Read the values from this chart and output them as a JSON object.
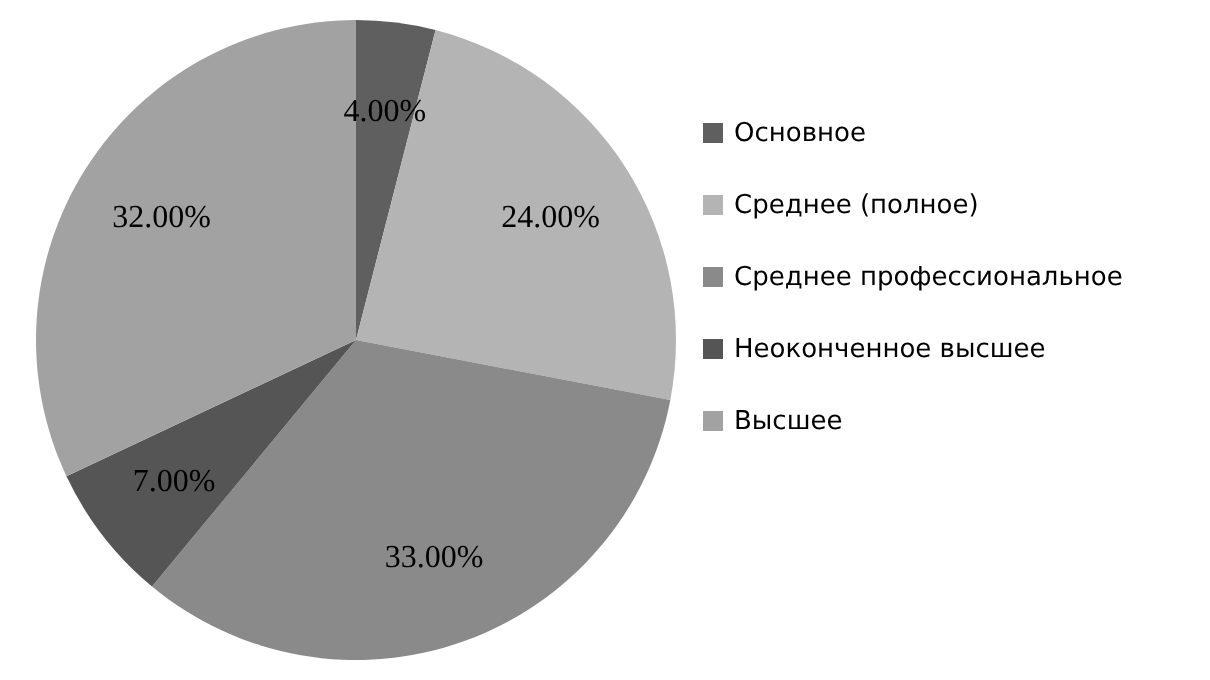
{
  "chart_data": {
    "type": "pie",
    "categories": [
      "Основное",
      "Среднее (полное)",
      "Среднее профессиональное",
      "Неоконченное высшее",
      "Высшее"
    ],
    "values": [
      4,
      24,
      33,
      7,
      32
    ],
    "colors": [
      "#5f5f5f",
      "#b4b4b4",
      "#8a8a8a",
      "#555555",
      "#a2a2a2"
    ],
    "value_labels": [
      "4.00%",
      "24.00%",
      "33.00%",
      "7.00%",
      "32.00%"
    ],
    "legend": "right"
  }
}
